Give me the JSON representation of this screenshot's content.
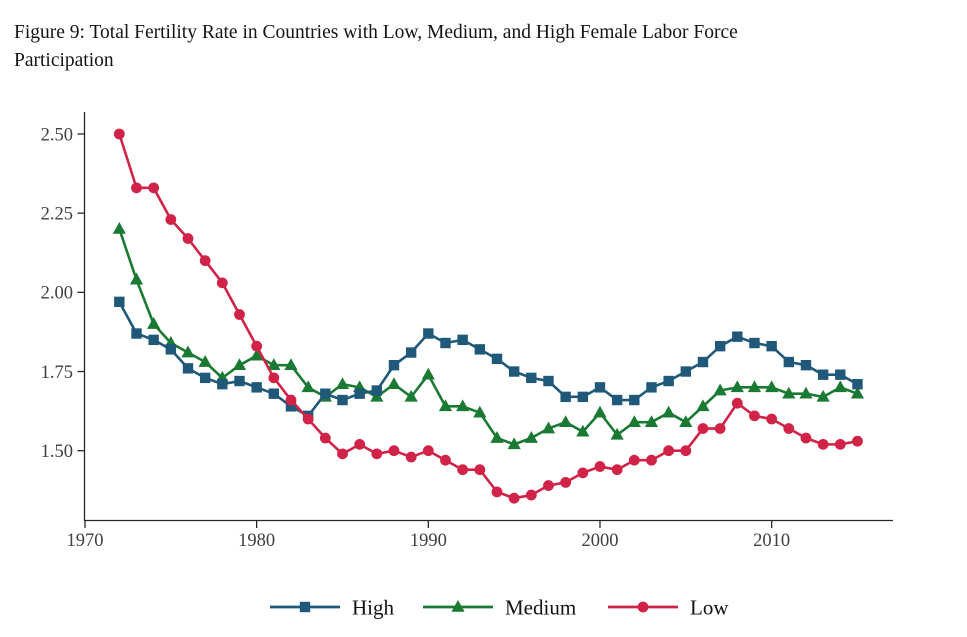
{
  "page": {
    "title_lines": [
      "Figure 9: Total Fertility Rate in Countries with Low, Medium, and High Female Labor Force",
      "Participation"
    ]
  },
  "chart_data": {
    "type": "line",
    "title": "Figure 9: Total Fertility Rate in Countries with Low, Medium, and High Female Labor Force Participation",
    "xlabel": "",
    "ylabel": "",
    "x": [
      1972,
      1973,
      1974,
      1975,
      1976,
      1977,
      1978,
      1979,
      1980,
      1981,
      1982,
      1983,
      1984,
      1985,
      1986,
      1987,
      1988,
      1989,
      1990,
      1991,
      1992,
      1993,
      1994,
      1995,
      1996,
      1997,
      1998,
      1999,
      2000,
      2001,
      2002,
      2003,
      2004,
      2005,
      2006,
      2007,
      2008,
      2009,
      2010,
      2011,
      2012,
      2013,
      2014,
      2015
    ],
    "series": [
      {
        "name": "High",
        "color": "#1f5878",
        "marker": "square",
        "values": [
          1.97,
          1.87,
          1.85,
          1.82,
          1.76,
          1.73,
          1.71,
          1.72,
          1.7,
          1.68,
          1.64,
          1.61,
          1.68,
          1.66,
          1.68,
          1.69,
          1.77,
          1.81,
          1.87,
          1.84,
          1.85,
          1.82,
          1.79,
          1.75,
          1.73,
          1.72,
          1.67,
          1.67,
          1.7,
          1.66,
          1.66,
          1.7,
          1.72,
          1.75,
          1.78,
          1.83,
          1.86,
          1.84,
          1.83,
          1.78,
          1.77,
          1.74,
          1.74,
          1.71
        ]
      },
      {
        "name": "Medium",
        "color": "#1a7a33",
        "marker": "triangle",
        "values": [
          2.2,
          2.04,
          1.9,
          1.84,
          1.81,
          1.78,
          1.73,
          1.77,
          1.8,
          1.77,
          1.77,
          1.7,
          1.67,
          1.71,
          1.7,
          1.67,
          1.71,
          1.67,
          1.74,
          1.64,
          1.64,
          1.62,
          1.54,
          1.52,
          1.54,
          1.57,
          1.59,
          1.56,
          1.62,
          1.55,
          1.59,
          1.59,
          1.62,
          1.59,
          1.64,
          1.69,
          1.7,
          1.7,
          1.7,
          1.68,
          1.68,
          1.67,
          1.7,
          1.68
        ]
      },
      {
        "name": "Low",
        "color": "#d02347",
        "marker": "circle",
        "values": [
          2.5,
          2.33,
          2.33,
          2.23,
          2.17,
          2.1,
          2.03,
          1.93,
          1.83,
          1.73,
          1.66,
          1.6,
          1.54,
          1.49,
          1.52,
          1.49,
          1.5,
          1.48,
          1.5,
          1.47,
          1.44,
          1.44,
          1.37,
          1.35,
          1.36,
          1.39,
          1.4,
          1.43,
          1.45,
          1.44,
          1.47,
          1.47,
          1.5,
          1.5,
          1.57,
          1.57,
          1.65,
          1.61,
          1.6,
          1.57,
          1.54,
          1.52,
          1.52,
          1.53
        ]
      }
    ],
    "x_ticks": [
      "1970",
      "1980",
      "1990",
      "2000",
      "2010"
    ],
    "y_ticks": [
      "2.50",
      "2.25",
      "2.00",
      "1.75",
      "1.50"
    ],
    "xlim": [
      1970,
      2017
    ],
    "ylim": [
      1.3,
      2.57
    ],
    "grid": false,
    "legend": {
      "position": "bottom",
      "items": [
        {
          "label": "High"
        },
        {
          "label": "Medium"
        },
        {
          "label": "Low"
        }
      ]
    }
  }
}
